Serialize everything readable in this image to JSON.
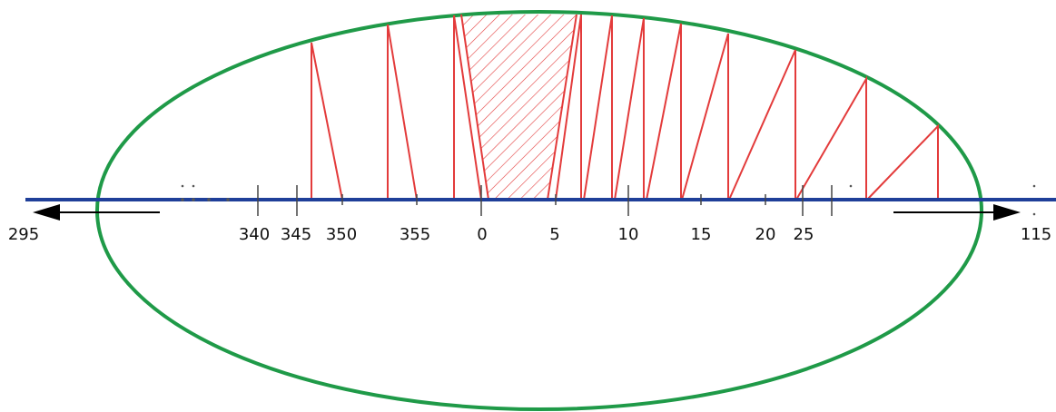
{
  "colors": {
    "axis": "#1f3f99",
    "ellipse": "#1f9a48",
    "wedge": "#e33b3b",
    "arrow": "#000000",
    "tick": "#444444",
    "dot": "#555555"
  },
  "axis": {
    "left_end_label": "295",
    "right_end_label": "115"
  },
  "tick_labels": [
    "340",
    "345",
    "350",
    "355",
    "0",
    "5",
    "10",
    "15",
    "20",
    "25"
  ],
  "icons": {
    "left_arrow": "arrow-left-icon",
    "right_arrow": "arrow-right-icon"
  }
}
